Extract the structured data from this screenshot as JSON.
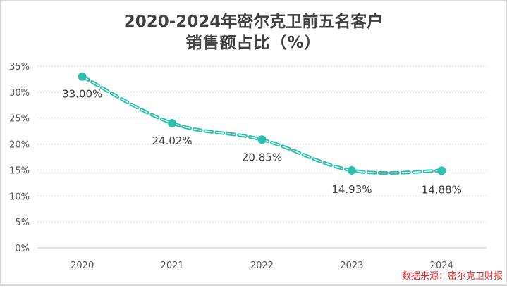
{
  "chart_data": {
    "type": "line",
    "title": "2020-2024年密尔克卫前五名客户",
    "subtitle": "销售额占比（%）",
    "categories": [
      "2020",
      "2021",
      "2022",
      "2023",
      "2024"
    ],
    "series": [
      {
        "name": "前五名客户销售额占比",
        "values": [
          33.0,
          24.02,
          20.85,
          14.93,
          14.88
        ],
        "color": "#2dbfad"
      }
    ],
    "data_labels": [
      "33.00%",
      "24.02%",
      "20.85%",
      "14.93%",
      "14.88%"
    ],
    "xlabel": "",
    "ylabel": "",
    "ylim": [
      0,
      35
    ],
    "y_ticks": [
      0,
      5,
      10,
      15,
      20,
      25,
      30,
      35
    ],
    "y_tick_labels": [
      "0%",
      "5%",
      "10%",
      "15%",
      "20%",
      "25%",
      "30%",
      "35%"
    ],
    "grid": true,
    "line_style": "dashed-smooth"
  },
  "source": "数据来源：密尔克卫财报",
  "colors": {
    "line": "#2dbfad",
    "text": "#404040",
    "source": "#e8262a",
    "grid": "#d0d0d0"
  }
}
